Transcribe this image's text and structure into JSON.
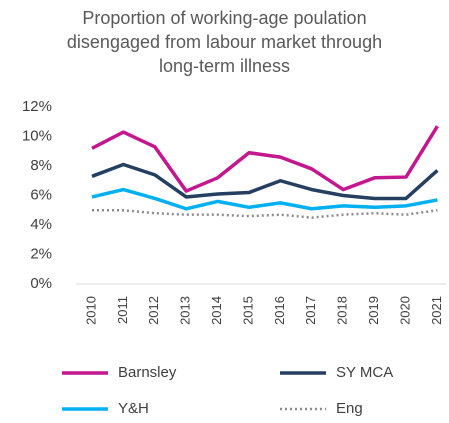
{
  "chart_data": {
    "type": "line",
    "title": "Proportion of working-age poulation disengaged from labour market through long-term illness",
    "categories": [
      "2010",
      "2011",
      "2012",
      "2013",
      "2014",
      "2015",
      "2016",
      "2017",
      "2018",
      "2019",
      "2020",
      "2021"
    ],
    "series": [
      {
        "name": "Barnsley",
        "color": "#c4168f",
        "dash": "solid",
        "values": [
          9.2,
          10.3,
          9.3,
          6.3,
          7.2,
          8.9,
          8.6,
          7.8,
          6.4,
          7.2,
          7.25,
          10.7
        ]
      },
      {
        "name": "SY MCA",
        "color": "#243f60",
        "dash": "solid",
        "values": [
          7.3,
          8.1,
          7.4,
          5.9,
          6.1,
          6.2,
          7.0,
          6.4,
          6.0,
          5.8,
          5.8,
          7.7
        ]
      },
      {
        "name": "Y&H",
        "color": "#00b0f0",
        "dash": "solid",
        "values": [
          5.9,
          6.4,
          5.8,
          5.1,
          5.6,
          5.2,
          5.5,
          5.1,
          5.3,
          5.2,
          5.3,
          5.7
        ]
      },
      {
        "name": "Eng",
        "color": "#8c8c8c",
        "dash": "dotted",
        "values": [
          5.0,
          5.0,
          4.8,
          4.7,
          4.7,
          4.6,
          4.7,
          4.5,
          4.7,
          4.8,
          4.7,
          5.0
        ]
      }
    ],
    "ylim": [
      0,
      12
    ],
    "yticks": [
      {
        "value": 0,
        "label": "0%"
      },
      {
        "value": 2,
        "label": "2%"
      },
      {
        "value": 4,
        "label": "4%"
      },
      {
        "value": 6,
        "label": "6%"
      },
      {
        "value": 8,
        "label": "8%"
      },
      {
        "value": 10,
        "label": "10%"
      },
      {
        "value": 12,
        "label": "12%"
      }
    ],
    "grid": false,
    "legend": "bottom"
  }
}
